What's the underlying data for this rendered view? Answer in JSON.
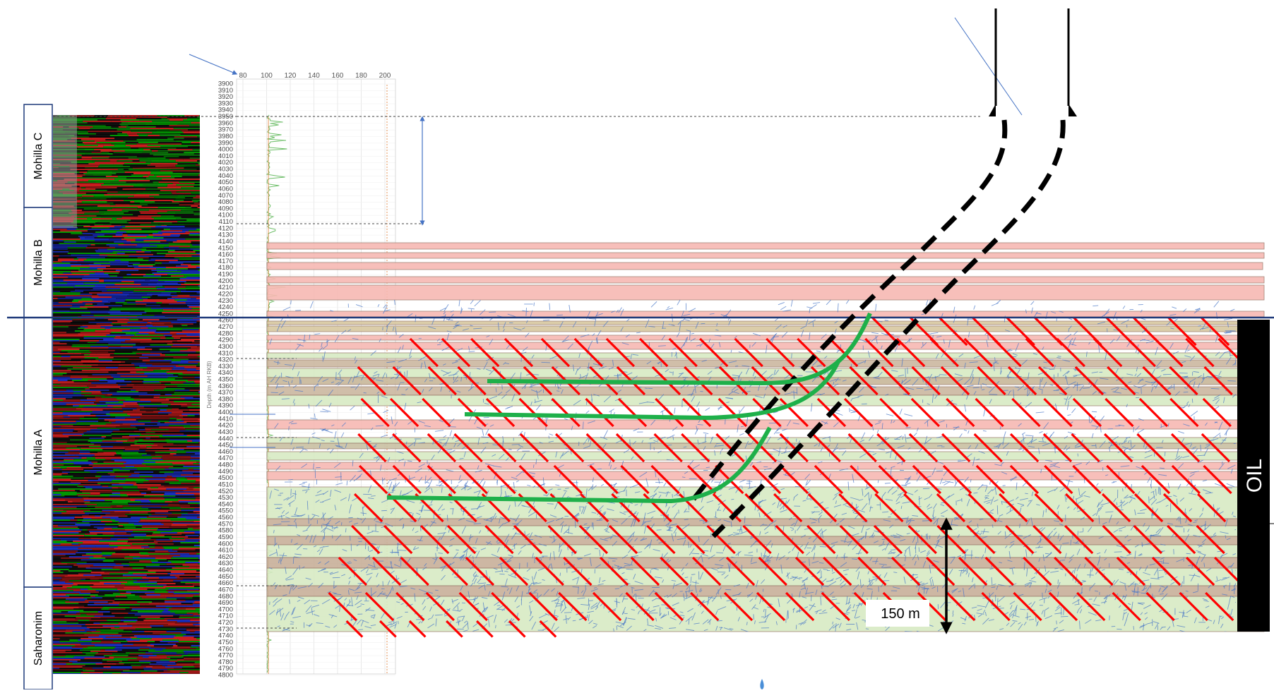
{
  "formations": [
    {
      "label": "Mohilla C"
    },
    {
      "label": "Mohilla B"
    },
    {
      "label": "Mohilla A"
    },
    {
      "label": "Saharonim"
    }
  ],
  "depth_axis": {
    "title": "Depth (m AH RKB)",
    "start": 3900,
    "end": 4800,
    "step": 10
  },
  "top_axis": {
    "ticks": [
      "80",
      "100",
      "120",
      "140",
      "160",
      "180",
      "200"
    ]
  },
  "scale_bar_label": "150 m",
  "oil_label": "OIL",
  "colors": {
    "red_band": "#f7b9b3",
    "green_band": "#d8ebc4",
    "fault": "#ff0000",
    "fracture": "#4a78c8",
    "well_path": "#1eb04a",
    "track_green": "#00aa00",
    "track_blue": "#1a33d6",
    "track_red": "#e62020",
    "oil_box": "#000000"
  }
}
